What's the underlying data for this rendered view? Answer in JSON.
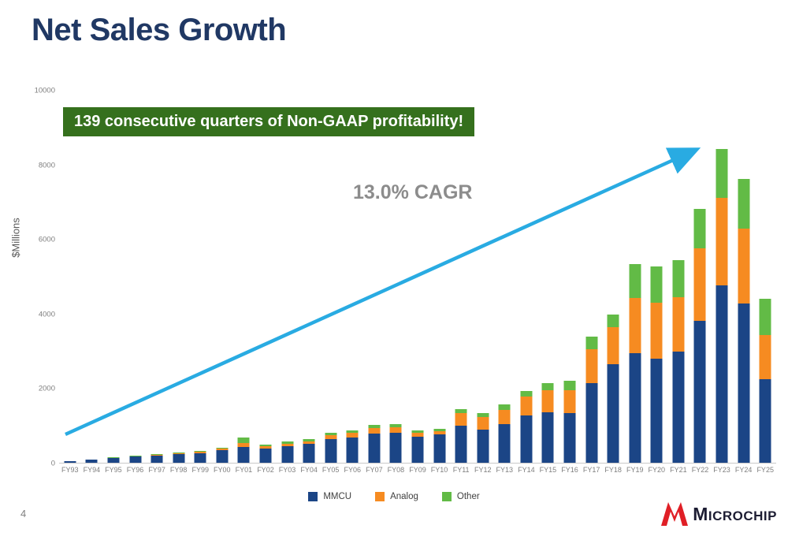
{
  "page": {
    "title": "Net Sales Growth",
    "page_number": "4"
  },
  "banner": {
    "text": "139 consecutive quarters of Non-GAAP profitability!"
  },
  "cagr_label": "13.0% CAGR",
  "logo": {
    "text": "Microchip"
  },
  "colors": {
    "title": "#203864",
    "banner_bg": "#35701d",
    "banner_text": "#ffffff",
    "cagr_text": "#8c8c8c",
    "arrow": "#29abe2",
    "axis_text": "#7f7f7f",
    "logo_red": "#e01f26",
    "logo_text": "#1d1d33"
  },
  "chart_data": {
    "type": "bar",
    "stacked": true,
    "title": "",
    "xlabel": "",
    "ylabel": "$Millions",
    "ylim": [
      0,
      10000
    ],
    "yticks": [
      0,
      2000,
      4000,
      6000,
      8000,
      10000
    ],
    "grid": false,
    "legend_position": "bottom",
    "categories": [
      "FY93",
      "FY94",
      "FY95",
      "FY96",
      "FY97",
      "FY98",
      "FY99",
      "FY00",
      "FY01",
      "FY02",
      "FY03",
      "FY04",
      "FY05",
      "FY06",
      "FY07",
      "FY08",
      "FY09",
      "FY10",
      "FY11",
      "FY12",
      "FY13",
      "FY14",
      "FY15",
      "FY16",
      "FY17",
      "FY18",
      "FY19",
      "FY20",
      "FY21",
      "FY22",
      "FY23",
      "FY24",
      "FY25"
    ],
    "series": [
      {
        "name": "MMCU",
        "color": "#1b4586",
        "values": [
          45,
          85,
          130,
          165,
          200,
          230,
          260,
          340,
          430,
          390,
          450,
          500,
          640,
          680,
          790,
          800,
          700,
          760,
          1000,
          900,
          1030,
          1270,
          1360,
          1330,
          2150,
          2650,
          2950,
          2800,
          2980,
          3820,
          4760,
          4270,
          2250
        ]
      },
      {
        "name": "Analog",
        "color": "#f68b21",
        "values": [
          0,
          0,
          5,
          10,
          15,
          25,
          30,
          45,
          90,
          50,
          60,
          70,
          100,
          120,
          150,
          160,
          110,
          90,
          330,
          330,
          390,
          500,
          590,
          620,
          900,
          1000,
          1480,
          1500,
          1480,
          1950,
          2350,
          2020,
          1180
        ]
      },
      {
        "name": "Other",
        "color": "#62bb46",
        "values": [
          0,
          0,
          5,
          10,
          15,
          15,
          20,
          25,
          150,
          40,
          60,
          60,
          60,
          70,
          70,
          70,
          50,
          60,
          120,
          110,
          140,
          160,
          200,
          250,
          350,
          330,
          920,
          970,
          980,
          1050,
          1330,
          1340,
          970
        ]
      }
    ],
    "annotations": [
      {
        "text": "139 consecutive quarters of Non-GAAP profitability!"
      },
      {
        "text": "13.0% CAGR"
      }
    ]
  }
}
